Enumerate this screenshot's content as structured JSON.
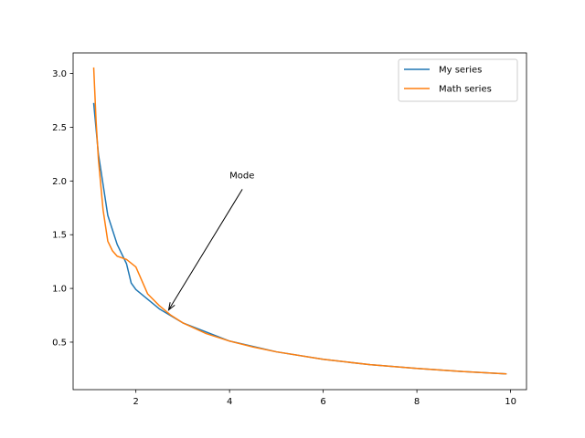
{
  "chart_data": {
    "type": "line",
    "title": "",
    "xlabel": "",
    "ylabel": "",
    "xlim": [
      0.66,
      10.34
    ],
    "ylim": [
      0.058,
      3.192
    ],
    "xticks": [
      2,
      4,
      6,
      8,
      10
    ],
    "xtick_labels": [
      "2",
      "4",
      "6",
      "8",
      "10"
    ],
    "yticks": [
      0.5,
      1.0,
      1.5,
      2.0,
      2.5,
      3.0
    ],
    "ytick_labels": [
      "0.5",
      "1.0",
      "1.5",
      "2.0",
      "2.5",
      "3.0"
    ],
    "grid": false,
    "legend_position": "top-right",
    "series": [
      {
        "name": "My series",
        "color": "#1f77b4",
        "x": [
          1.1,
          1.2,
          1.4,
          1.6,
          1.8,
          1.9,
          2.0,
          2.5,
          3.0,
          4.0,
          5.0,
          6.0,
          7.0,
          8.0,
          9.0,
          9.9
        ],
        "y": [
          2.72,
          2.25,
          1.68,
          1.41,
          1.23,
          1.05,
          0.99,
          0.81,
          0.68,
          0.51,
          0.41,
          0.34,
          0.29,
          0.255,
          0.226,
          0.205
        ]
      },
      {
        "name": "Math series",
        "color": "#ff7f0e",
        "x": [
          1.1,
          1.15,
          1.2,
          1.3,
          1.4,
          1.5,
          1.6,
          1.8,
          2.0,
          2.25,
          2.5,
          2.75,
          3.0,
          3.5,
          4.0,
          4.5,
          5.0,
          6.0,
          7.0,
          8.0,
          9.0,
          9.9
        ],
        "y": [
          3.05,
          2.56,
          2.2,
          1.73,
          1.44,
          1.35,
          1.3,
          1.27,
          1.2,
          0.95,
          0.84,
          0.75,
          0.68,
          0.58,
          0.51,
          0.455,
          0.41,
          0.34,
          0.29,
          0.255,
          0.226,
          0.205
        ]
      }
    ],
    "annotations": [
      {
        "text": "Mode",
        "text_x": 4.0,
        "text_y": 2.0,
        "point_x": 2.7,
        "point_y": 0.8
      }
    ]
  }
}
